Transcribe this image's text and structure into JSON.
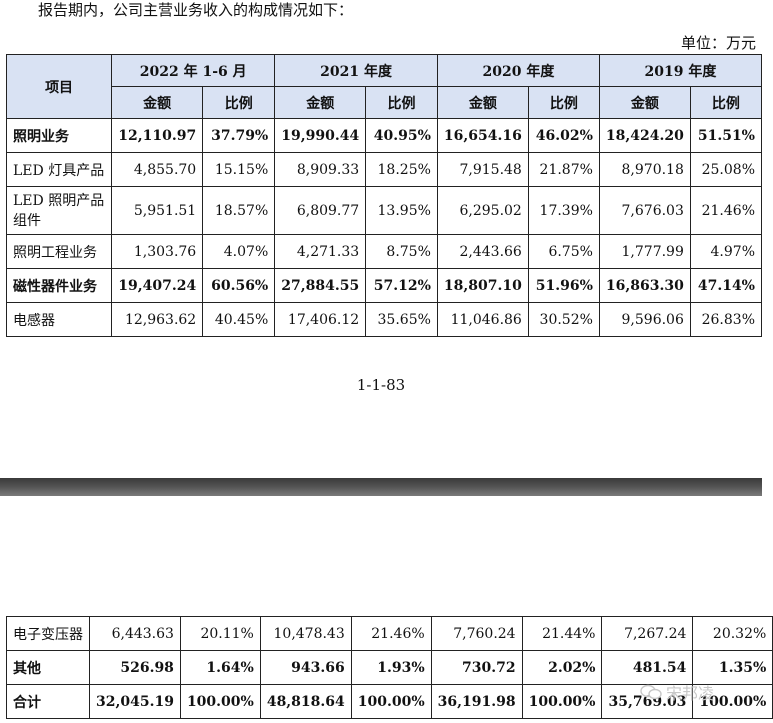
{
  "intro": "报告期内，公司主营业务收入的构成情况如下：",
  "unit": "单位：万元",
  "header": {
    "item": "项目",
    "periods": [
      "2022 年 1-6 月",
      "2021 年度",
      "2020 年度",
      "2019 年度"
    ],
    "amount": "金额",
    "ratio": "比例"
  },
  "rows_top": [
    {
      "label": "照明业务",
      "bold": true,
      "values": [
        "12,110.97",
        "37.79%",
        "19,990.44",
        "40.95%",
        "16,654.16",
        "46.02%",
        "18,424.20",
        "51.51%"
      ]
    },
    {
      "label": "LED 灯具产品",
      "bold": false,
      "values": [
        "4,855.70",
        "15.15%",
        "8,909.33",
        "18.25%",
        "7,915.48",
        "21.87%",
        "8,970.18",
        "25.08%"
      ]
    },
    {
      "label": "LED 照明产品组件",
      "bold": false,
      "values": [
        "5,951.51",
        "18.57%",
        "6,809.77",
        "13.95%",
        "6,295.02",
        "17.39%",
        "7,676.03",
        "21.46%"
      ]
    },
    {
      "label": "照明工程业务",
      "bold": false,
      "values": [
        "1,303.76",
        "4.07%",
        "4,271.33",
        "8.75%",
        "2,443.66",
        "6.75%",
        "1,777.99",
        "4.97%"
      ]
    },
    {
      "label": "磁性器件业务",
      "bold": true,
      "values": [
        "19,407.24",
        "60.56%",
        "27,884.55",
        "57.12%",
        "18,807.10",
        "51.96%",
        "16,863.30",
        "47.14%"
      ]
    },
    {
      "label": "电感器",
      "bold": false,
      "values": [
        "12,963.62",
        "40.45%",
        "17,406.12",
        "35.65%",
        "11,046.86",
        "30.52%",
        "9,596.06",
        "26.83%"
      ]
    }
  ],
  "page_number": "1-1-83",
  "rows_bottom": [
    {
      "label": "电子变压器",
      "bold": false,
      "values": [
        "6,443.63",
        "20.11%",
        "10,478.43",
        "21.46%",
        "7,760.24",
        "21.44%",
        "7,267.24",
        "20.32%"
      ]
    },
    {
      "label": "其他",
      "bold": true,
      "values": [
        "526.98",
        "1.64%",
        "943.66",
        "1.93%",
        "730.72",
        "2.02%",
        "481.54",
        "1.35%"
      ]
    },
    {
      "label": "合计",
      "bold": true,
      "values": [
        "32,045.19",
        "100.00%",
        "48,818.64",
        "100.00%",
        "36,191.98",
        "100.00%",
        "35,769.03",
        "100.00%"
      ]
    }
  ],
  "watermark": "宋邦凌",
  "colors": {
    "header_bg": "#d9e2f3",
    "separator": "#4a4a4a"
  }
}
